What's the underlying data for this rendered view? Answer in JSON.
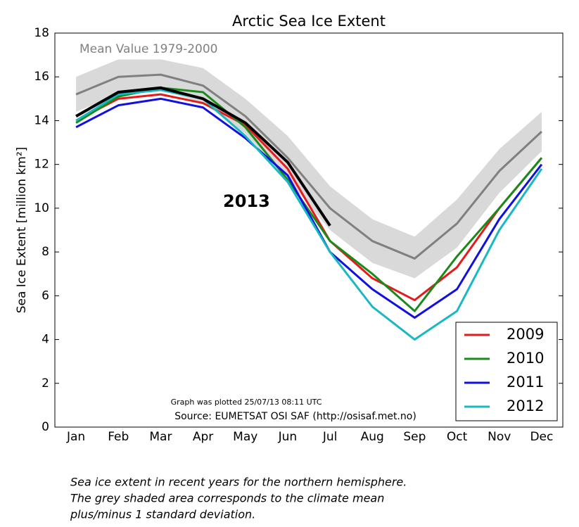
{
  "chart_data": {
    "type": "line",
    "title": "Arctic Sea Ice Extent",
    "ylabel": "Sea Ice Extent [million km²]",
    "categories": [
      "Jan",
      "Feb",
      "Mar",
      "Apr",
      "May",
      "Jun",
      "Jul",
      "Aug",
      "Sep",
      "Oct",
      "Nov",
      "Dec"
    ],
    "ylim": [
      0,
      18
    ],
    "yticks": [
      0,
      2,
      4,
      6,
      8,
      10,
      12,
      14,
      16,
      18
    ],
    "grid": false,
    "legend": "lower right",
    "band": {
      "color": "#d9d9d9",
      "upper": [
        16.0,
        16.8,
        16.8,
        16.4,
        15.0,
        13.3,
        11.0,
        9.5,
        8.7,
        10.4,
        12.7,
        14.4
      ],
      "lower": [
        14.4,
        15.2,
        15.4,
        14.8,
        13.4,
        11.3,
        9.0,
        7.5,
        6.8,
        8.2,
        10.7,
        12.6
      ]
    },
    "series": [
      {
        "name": "Mean Value 1979-2000",
        "color": "#808080",
        "legend": false,
        "values": [
          15.2,
          16.0,
          16.1,
          15.6,
          14.2,
          12.3,
          10.0,
          8.5,
          7.7,
          9.3,
          11.7,
          13.5
        ]
      },
      {
        "name": "2009",
        "color": "#e41a1c",
        "legend": true,
        "values": [
          14.0,
          15.0,
          15.2,
          14.8,
          13.8,
          11.8,
          8.5,
          6.8,
          5.8,
          7.3,
          10.0,
          12.3
        ]
      },
      {
        "name": "2010",
        "color": "#1a8a1a",
        "legend": true,
        "values": [
          13.9,
          15.1,
          15.5,
          15.3,
          13.7,
          11.3,
          8.5,
          7.0,
          5.3,
          7.8,
          10.0,
          12.3
        ]
      },
      {
        "name": "2011",
        "color": "#1010e0",
        "legend": true,
        "values": [
          13.7,
          14.7,
          15.0,
          14.6,
          13.2,
          11.5,
          8.0,
          6.3,
          5.0,
          6.3,
          9.5,
          12.0
        ]
      },
      {
        "name": "2012",
        "color": "#1ab8c0",
        "legend": true,
        "values": [
          14.0,
          15.2,
          15.4,
          15.0,
          13.3,
          11.2,
          8.0,
          5.5,
          4.0,
          5.3,
          9.0,
          11.8
        ]
      },
      {
        "name": "2013",
        "color": "#000000",
        "legend": false,
        "values": [
          14.2,
          15.3,
          15.5,
          15.0,
          13.9,
          12.1,
          9.2,
          null,
          null,
          null,
          null,
          null
        ]
      }
    ],
    "annotations": [
      "Graph was plotted 25/07/13 08:11 UTC",
      "Source: EUMETSAT OSI SAF (http://osisaf.met.no)"
    ]
  },
  "caption": [
    "Sea ice extent in recent years for the northern hemisphere.",
    "The grey shaded area corresponds to the climate mean",
    "plus/minus 1 standard deviation."
  ]
}
